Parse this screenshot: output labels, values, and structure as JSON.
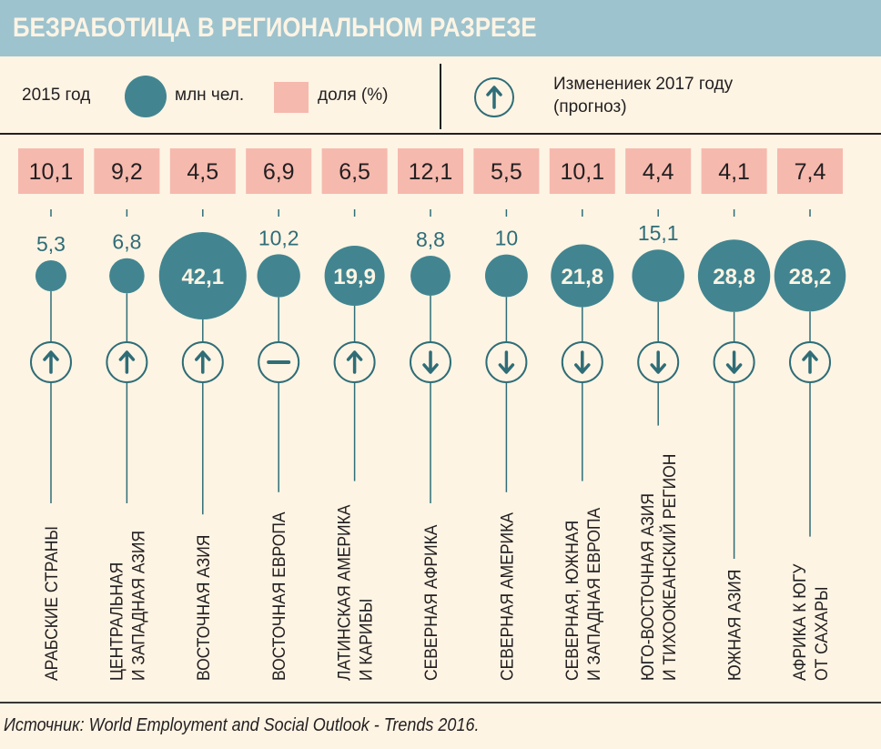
{
  "header": {
    "title": "БЕЗРАБОТИЦА В РЕГИОНАЛЬНОМ РАЗРЕЗЕ"
  },
  "legend": {
    "year_label": "2015 год",
    "circle_label": "млн чел.",
    "square_label": "доля (%)",
    "change_label_line1": "Изменениек  2017 году",
    "change_label_line2": "(прогноз)",
    "change_icon": "arrow-up-circle-icon"
  },
  "colors": {
    "header_bg": "#9dc3ce",
    "background": "#fdf4e4",
    "circle": "#428590",
    "share_box": "#f6b9ae",
    "icon_stroke": "#2f6d77"
  },
  "source": "Источник:  World Employment and Social Outlook - Trends 2016.",
  "chart_data": {
    "type": "bubble",
    "title": "БЕЗРАБОТИЦА В РЕГИОНАЛЬНОМ РАЗРЕЗЕ",
    "year": "2015",
    "series": [
      {
        "name": "Безработные, млн чел.",
        "key": "millions"
      },
      {
        "name": "Доля безработных, %",
        "key": "share"
      },
      {
        "name": "Изменение к 2017 году (прогноз)",
        "key": "change"
      }
    ],
    "regions": [
      {
        "label_lines": [
          "АРАБСКИЕ СТРАНЫ"
        ],
        "share": "10,1",
        "millions_text": "5,3",
        "millions": 5.3,
        "change": "up"
      },
      {
        "label_lines": [
          "ЦЕНТРАЛЬНАЯ",
          "И ЗАПАДНАЯ АЗИЯ"
        ],
        "share": "9,2",
        "millions_text": "6,8",
        "millions": 6.8,
        "change": "up"
      },
      {
        "label_lines": [
          "ВОСТОЧНАЯ АЗИЯ"
        ],
        "share": "4,5",
        "millions_text": "42,1",
        "millions": 42.1,
        "change": "up"
      },
      {
        "label_lines": [
          "ВОСТОЧНАЯ ЕВРОПА"
        ],
        "share": "6,9",
        "millions_text": "10,2",
        "millions": 10.2,
        "change": "flat"
      },
      {
        "label_lines": [
          "ЛАТИНСКАЯ АМЕРИКА",
          "И КАРИБЫ"
        ],
        "share": "6,5",
        "millions_text": "19,9",
        "millions": 19.9,
        "change": "up"
      },
      {
        "label_lines": [
          "СЕВЕРНАЯ АФРИКА"
        ],
        "share": "12,1",
        "millions_text": "8,8",
        "millions": 8.8,
        "change": "down"
      },
      {
        "label_lines": [
          "СЕВЕРНАЯ АМЕРИКА"
        ],
        "share": "5,5",
        "millions_text": "10",
        "millions": 10,
        "change": "down"
      },
      {
        "label_lines": [
          "СЕВЕРНАЯ, ЮЖНАЯ",
          "И ЗАПАДНАЯ ЕВРОПА"
        ],
        "share": "10,1",
        "millions_text": "21,8",
        "millions": 21.8,
        "change": "down"
      },
      {
        "label_lines": [
          "ЮГО-ВОСТОЧНАЯ АЗИЯ",
          "И ТИХООКЕАНСКИЙ РЕГИОН"
        ],
        "share": "4,4",
        "millions_text": "15,1",
        "millions": 15.1,
        "change": "down"
      },
      {
        "label_lines": [
          "ЮЖНАЯ АЗИЯ"
        ],
        "share": "4,1",
        "millions_text": "28,8",
        "millions": 28.8,
        "change": "down"
      },
      {
        "label_lines": [
          "АФРИКА К ЮГУ",
          "ОТ САХАРЫ"
        ],
        "share": "7,4",
        "millions_text": "28,2",
        "millions": 28.2,
        "change": "up"
      }
    ]
  }
}
